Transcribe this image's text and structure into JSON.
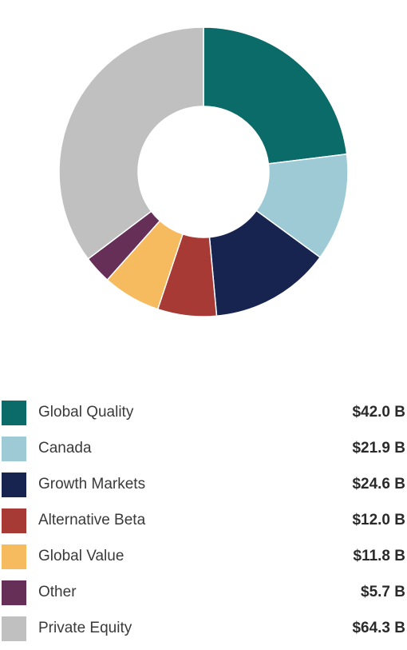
{
  "chart_data": {
    "type": "pie",
    "donut": true,
    "legend_position": "bottom",
    "unit_prefix": "$",
    "unit_suffix": " B",
    "slices": [
      {
        "label": "Global Quality",
        "value": 42.0,
        "display": "$42.0 B",
        "color": "#0b6b68"
      },
      {
        "label": "Canada",
        "value": 21.9,
        "display": "$21.9 B",
        "color": "#9ecad5"
      },
      {
        "label": "Growth Markets",
        "value": 24.6,
        "display": "$24.6 B",
        "color": "#17244f"
      },
      {
        "label": "Alternative Beta",
        "value": 12.0,
        "display": "$12.0 B",
        "color": "#a83a35"
      },
      {
        "label": "Global Value",
        "value": 11.8,
        "display": "$11.8 B",
        "color": "#f6bb5f"
      },
      {
        "label": "Other",
        "value": 5.7,
        "display": "$5.7 B",
        "color": "#652f57"
      },
      {
        "label": "Private Equity",
        "value": 64.3,
        "display": "$64.3 B",
        "color": "#c0c0c0"
      }
    ]
  }
}
